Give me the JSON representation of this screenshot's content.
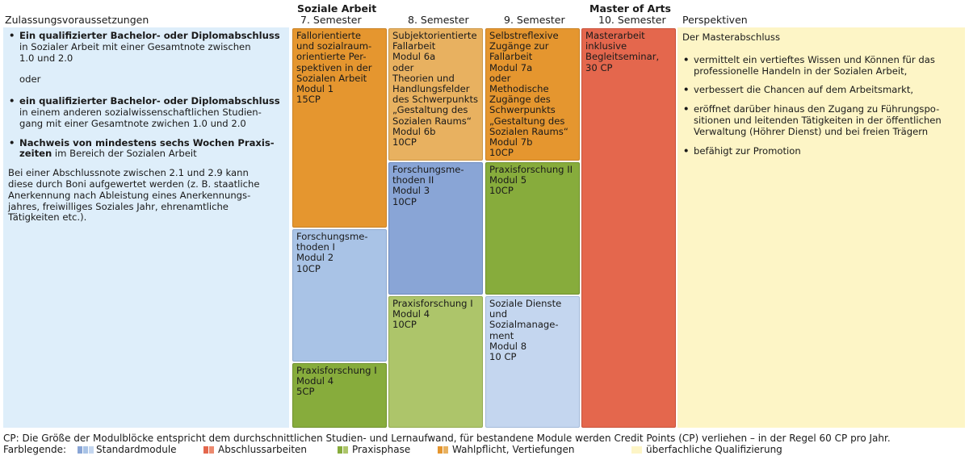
{
  "headers": {
    "zulassung": "Zulassungsvoraussetzungen",
    "soziale_arbeit": "Soziale Arbeit",
    "sem7": "7. Semester",
    "sem8": "8. Semester",
    "sem9": "9. Semester",
    "master": "Master of Arts",
    "sem10": "10. Semester",
    "perspektiven": "Perspektiven"
  },
  "zulassung": {
    "b1_bold": "Ein qualifizierter Bachelor- oder Diplomabschluss",
    "b1_l2": "in Sozialer Arbeit mit einer Gesamtnote zwischen",
    "b1_l3": "1.0 und 2.0",
    "oder": "oder",
    "b2_bold": "ein qualifizierter Bachelor- oder Diplomabschluss",
    "b2_l2": "in einem anderen sozialwissenschaftlichen Studien-",
    "b2_l3": "gang mit einer Gesamtnote zwichen 1.0 und 2.0",
    "b3_bold1": "Nachweis von mindestens sechs Wochen Praxis-",
    "b3_bold2": "zeiten",
    "b3_rest": " im Bereich der Sozialen Arbeit",
    "p_l1": "Bei einer Abschlussnote zwischen 2.1 und 2.9 kann",
    "p_l2": "diese durch Boni aufgewertet werden (z. B. staatliche",
    "p_l3": "Anerkennung nach Ableistung eines Anerkennungs-",
    "p_l4": "jahres, freiwilliges Soziales Jahr, ehrenamtliche",
    "p_l5": "Tätigkeiten etc.)."
  },
  "modules": {
    "m1": [
      "Fallorientierte",
      "und sozialraum-",
      "orientierte Per-",
      "spektiven in der",
      "Sozialen Arbeit",
      "Modul 1",
      "15CP"
    ],
    "m2": [
      "Forschungsme-",
      "thoden I",
      "Modul 2",
      "10CP"
    ],
    "m4a": [
      "Praxisforschung I",
      "Modul 4",
      "5CP"
    ],
    "m6": [
      "Subjektorientierte",
      "Fallarbeit",
      "Modul 6a",
      "oder",
      "Theorien und",
      "Handlungsfelder",
      "des Schwerpunkts",
      "„Gestaltung des",
      "Sozialen Raums“",
      "Modul 6b",
      "10CP"
    ],
    "m3": [
      "Forschungsme-",
      "thoden II",
      "Modul 3",
      "10CP"
    ],
    "m4b": [
      "Praxisforschung I",
      "Modul 4",
      "10CP"
    ],
    "m7": [
      "Selbstreflexive",
      "Zugänge zur",
      "Fallarbeit",
      "Modul 7a",
      "oder",
      "Methodische",
      "Zugänge des",
      "Schwerpunkts",
      "„Gestaltung des",
      "Sozialen Raums“",
      "Modul 7b",
      "10CP"
    ],
    "m5": [
      "Praxisforschung II",
      "Modul 5",
      "10CP"
    ],
    "m8": [
      "Soziale Dienste",
      "und",
      "Sozialmanage-",
      "ment",
      "Modul 8",
      "10 CP"
    ],
    "ma": [
      "Masterarbeit",
      "inklusive",
      "Begleitseminar,",
      "30 CP"
    ]
  },
  "perspektiven": {
    "title": "Der Masterabschluss",
    "i1_l1": "vermittelt ein vertieftes Wissen und Können für das",
    "i1_l2": "professionelle Handeln in der Sozialen Arbeit,",
    "i2_l1": "verbessert die Chancen auf dem Arbeitsmarkt,",
    "i3_l1": "eröffnet darüber hinaus den Zugang zu Führungspo-",
    "i3_l2": "sitionen und leitenden Tätigkeiten in der öffentlichen",
    "i3_l3": "Verwaltung (Höhrer Dienst) und bei freien Trägern",
    "i4_l1": "befähigt zur Promotion"
  },
  "footer": {
    "note": "CP: Die Größe der Modulblöcke entspricht dem durchschnittlichen Studien- und Lernaufwand, für bestandene Module werden Credit Points (CP) verliehen – in der Regel 60 CP pro Jahr.",
    "legend_title": "Farblegende:",
    "legend": [
      {
        "label": "Standardmodule",
        "colors": [
          "#89a5d6",
          "#a9c3e6",
          "#c4d6ef"
        ]
      },
      {
        "label": "Abschlussarbeiten",
        "colors": [
          "#e4674d",
          "#ec8a6f"
        ]
      },
      {
        "label": "Praxisphase",
        "colors": [
          "#87ac3c",
          "#adc56a"
        ]
      },
      {
        "label": "Wahlpflicht, Vertiefungen",
        "colors": [
          "#e5962f",
          "#e8b160"
        ]
      },
      {
        "label": "überfachliche Qualifizierung",
        "colors": [
          "#fdf5c6"
        ]
      }
    ]
  }
}
